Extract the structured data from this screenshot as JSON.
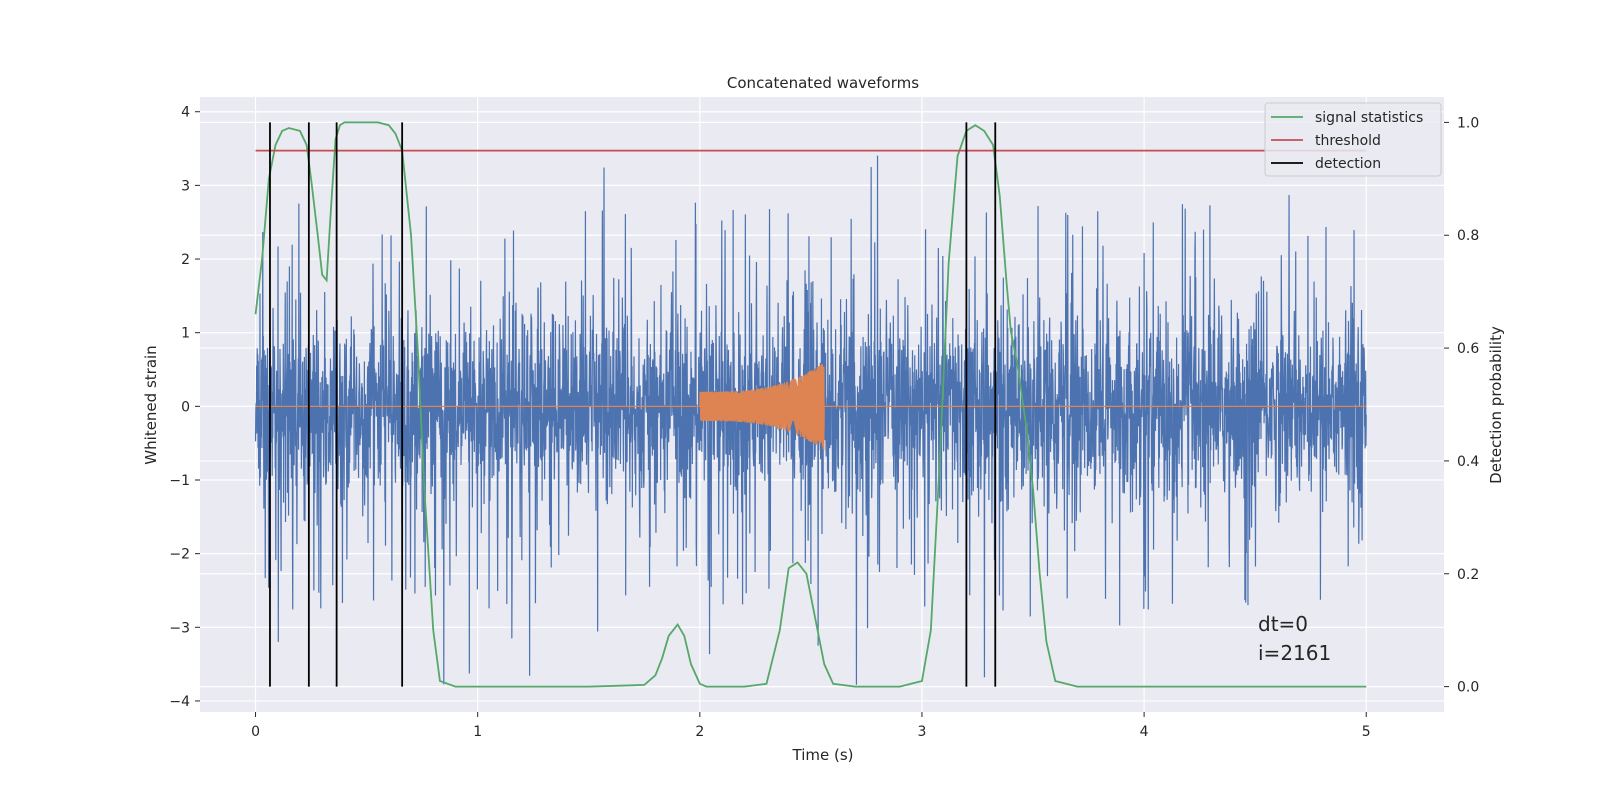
{
  "chart_data": {
    "type": "line",
    "title": "Concatenated waveforms",
    "xlabel": "Time (s)",
    "ylabel": "Whitened strain",
    "y2label": "Detection probability",
    "xlim": [
      -0.25,
      5.35
    ],
    "ylim": [
      -4.15,
      4.2
    ],
    "y2lim": [
      -0.045,
      1.045
    ],
    "x_ticks": [
      0,
      1,
      2,
      3,
      4,
      5
    ],
    "y_ticks": [
      -4,
      -3,
      -2,
      -1,
      0,
      1,
      2,
      3,
      4
    ],
    "y2_ticks": [
      0.0,
      0.2,
      0.4,
      0.6,
      0.8,
      1.0
    ],
    "x_tick_labels": [
      "0",
      "1",
      "2",
      "3",
      "4",
      "5"
    ],
    "y_tick_labels": [
      "−4",
      "−3",
      "−2",
      "−1",
      "0",
      "1",
      "2",
      "3",
      "4"
    ],
    "y2_tick_labels": [
      "0.0",
      "0.2",
      "0.4",
      "0.6",
      "0.8",
      "1.0"
    ],
    "grid": true,
    "legend_position": "top-right",
    "legend": [
      "signal statistics",
      "threshold",
      "detection"
    ],
    "colors": {
      "background": "#eaeaf2",
      "grid": "#ffffff",
      "noise": "#4c72b0",
      "waveform": "#dd8452",
      "statistic": "#55a868",
      "threshold": "#c44e52",
      "detection": "#000000"
    },
    "series": [
      {
        "name": "signal statistics",
        "axis": "right",
        "x": [
          0,
          0.03,
          0.06,
          0.09,
          0.12,
          0.15,
          0.2,
          0.23,
          0.25,
          0.28,
          0.3,
          0.32,
          0.34,
          0.36,
          0.38,
          0.4,
          0.45,
          0.5,
          0.55,
          0.6,
          0.63,
          0.66,
          0.7,
          0.73,
          0.76,
          0.8,
          0.83,
          0.9,
          1.0,
          1.5,
          1.75,
          1.8,
          1.83,
          1.86,
          1.9,
          1.93,
          1.96,
          2.0,
          2.03,
          2.1,
          2.2,
          2.3,
          2.36,
          2.4,
          2.44,
          2.48,
          2.52,
          2.56,
          2.6,
          2.7,
          2.9,
          3.0,
          3.04,
          3.08,
          3.12,
          3.16,
          3.2,
          3.24,
          3.28,
          3.32,
          3.35,
          3.38,
          3.4,
          3.43,
          3.47,
          3.5,
          3.53,
          3.56,
          3.6,
          3.7,
          4.0,
          4.5,
          5.0
        ],
        "y": [
          0.66,
          0.76,
          0.9,
          0.96,
          0.985,
          0.99,
          0.985,
          0.96,
          0.9,
          0.8,
          0.73,
          0.72,
          0.85,
          0.97,
          0.995,
          1.0,
          1.0,
          1.0,
          1.0,
          0.995,
          0.98,
          0.95,
          0.8,
          0.6,
          0.35,
          0.1,
          0.01,
          0.0,
          0.0,
          0.0,
          0.003,
          0.02,
          0.05,
          0.09,
          0.11,
          0.09,
          0.04,
          0.005,
          0.0,
          0.0,
          0.0,
          0.005,
          0.1,
          0.21,
          0.22,
          0.2,
          0.12,
          0.04,
          0.005,
          0.0,
          0.0,
          0.01,
          0.1,
          0.4,
          0.75,
          0.94,
          0.985,
          0.995,
          0.985,
          0.96,
          0.87,
          0.72,
          0.63,
          0.57,
          0.46,
          0.35,
          0.2,
          0.08,
          0.01,
          0.0,
          0.0,
          0.0,
          0.0
        ]
      },
      {
        "name": "threshold",
        "axis": "right",
        "x": [
          0,
          5
        ],
        "y": [
          0.95,
          0.95
        ]
      }
    ],
    "detections": [
      0.065,
      0.24,
      0.365,
      0.66,
      3.2,
      3.33
    ],
    "noise": {
      "axis": "left",
      "x_range": [
        0,
        5
      ],
      "core_amplitude": 1.0,
      "typical_peak_range": [
        1.4,
        2.8
      ],
      "max_peak": 3.55,
      "min_trough": -3.85
    },
    "waveform": {
      "axis": "left",
      "x_range": [
        2.0,
        2.56
      ],
      "start_amplitude": 0.2,
      "end_amplitude": 0.6
    },
    "annotations": [
      "dt=0",
      "i=2161"
    ]
  }
}
